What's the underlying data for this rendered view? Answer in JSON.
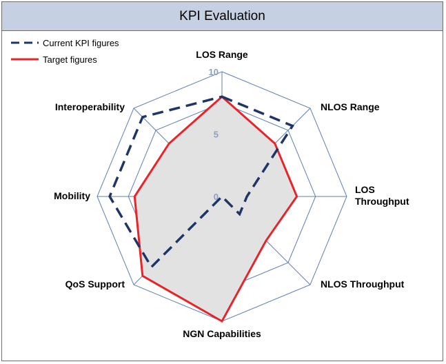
{
  "title": "KPI Evaluation",
  "chart_data": {
    "type": "radar",
    "title": "KPI Evaluation",
    "categories": [
      "LOS Range",
      "NLOS Range",
      "LOS Throughput",
      "NLOS Throughput",
      "NGN Capabilities",
      "QoS Support",
      "Mobility",
      "Interoperability"
    ],
    "category_display": [
      [
        "LOS Range"
      ],
      [
        "NLOS Range"
      ],
      [
        "LOS",
        "Throughput"
      ],
      [
        "NLOS Throughput"
      ],
      [
        "NGN Capabilities"
      ],
      [
        "QoS Support"
      ],
      [
        "Mobility"
      ],
      [
        "Interoperability"
      ]
    ],
    "rlim": [
      0,
      10
    ],
    "ticks": [
      {
        "value": 0,
        "label": "0"
      },
      {
        "value": 5,
        "label": "5"
      },
      {
        "value": 10,
        "label": "10"
      }
    ],
    "gridlines": [
      5,
      7.5,
      10
    ],
    "legend_position": "top-left",
    "series": [
      {
        "name": "Current KPI figures",
        "color": "#1f3566",
        "dash": "dashed",
        "fill": false,
        "values": [
          8,
          8,
          2,
          2,
          0,
          8,
          9,
          9
        ]
      },
      {
        "name": "Target figures",
        "color": "#e8242b",
        "dash": "solid",
        "fill": true,
        "fill_color": "#e2e2e2",
        "values": [
          8,
          6,
          6,
          5,
          10,
          9,
          7,
          6
        ]
      }
    ]
  }
}
